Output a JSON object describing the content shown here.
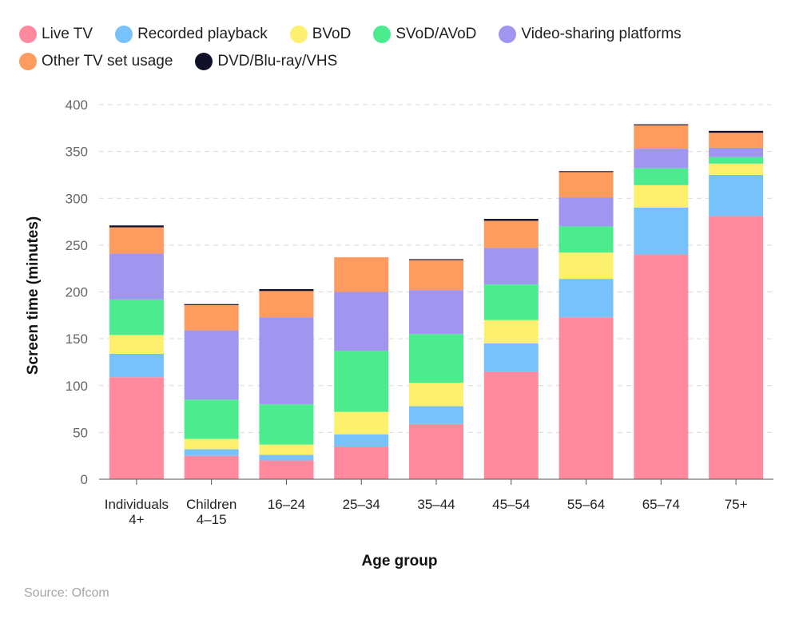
{
  "source": "Source: Ofcom",
  "chart_data": {
    "type": "bar",
    "stacked": true,
    "xlabel": "Age group",
    "ylabel": "Screen time (minutes)",
    "ylim": [
      0,
      400
    ],
    "yticks": [
      0,
      50,
      100,
      150,
      200,
      250,
      300,
      350,
      400
    ],
    "grid": true,
    "legend_position": "top-left",
    "categories": [
      [
        "Individuals",
        "4+"
      ],
      [
        "Children",
        "4–15"
      ],
      [
        "16–24"
      ],
      [
        "25–34"
      ],
      [
        "35–44"
      ],
      [
        "45–54"
      ],
      [
        "55–64"
      ],
      [
        "65–74"
      ],
      [
        "75+"
      ]
    ],
    "series": [
      {
        "name": "Live TV",
        "color": "#ff8a9e",
        "values": [
          109,
          25,
          20,
          35,
          59,
          115,
          173,
          240,
          281
        ]
      },
      {
        "name": "Recorded playback",
        "color": "#78c2fb",
        "values": [
          25,
          7,
          6,
          13,
          19,
          30,
          41,
          50,
          44
        ]
      },
      {
        "name": "BVoD",
        "color": "#fdf06e",
        "values": [
          20,
          11,
          11,
          24,
          25,
          25,
          28,
          24,
          12
        ]
      },
      {
        "name": "SVoD/AVoD",
        "color": "#4cec8e",
        "values": [
          38,
          42,
          43,
          65,
          52,
          38,
          28,
          18,
          7
        ]
      },
      {
        "name": "Video-sharing platforms",
        "color": "#a095ef",
        "values": [
          49,
          74,
          93,
          63,
          47,
          39,
          31,
          21,
          10
        ]
      },
      {
        "name": "Other TV set usage",
        "color": "#fe9b5e",
        "values": [
          28,
          27,
          28,
          37,
          32,
          29,
          27,
          25,
          16
        ]
      },
      {
        "name": "DVD/Blu-ray/VHS",
        "color": "#11112a",
        "values": [
          2,
          1,
          2,
          0,
          1,
          2,
          1,
          1,
          2
        ]
      }
    ]
  }
}
